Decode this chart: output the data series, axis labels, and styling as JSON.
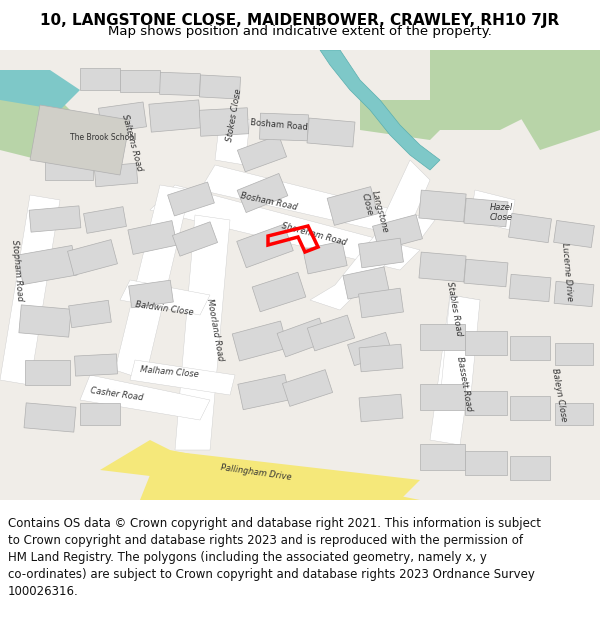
{
  "title": "10, LANGSTONE CLOSE, MAIDENBOWER, CRAWLEY, RH10 7JR",
  "subtitle": "Map shows position and indicative extent of the property.",
  "footer_lines": [
    "Contains OS data © Crown copyright and database right 2021. This information is subject",
    "to Crown copyright and database rights 2023 and is reproduced with the permission of",
    "HM Land Registry. The polygons (including the associated geometry, namely x, y",
    "co-ordinates) are subject to Crown copyright and database rights 2023 Ordnance Survey",
    "100026316."
  ],
  "title_fontsize": 11,
  "subtitle_fontsize": 9.5,
  "footer_fontsize": 8.5,
  "map_bg": "#f0ede8",
  "road_color": "#ffffff",
  "building_color": "#d8d8d8",
  "building_edge": "#b0b0b0",
  "green_area": "#b8d4a8",
  "water_color": "#7ec8c8",
  "yellow_road": "#f5e87a",
  "highlight_color": "#ff0000",
  "header_bg": "#ffffff",
  "footer_bg": "#ffffff"
}
